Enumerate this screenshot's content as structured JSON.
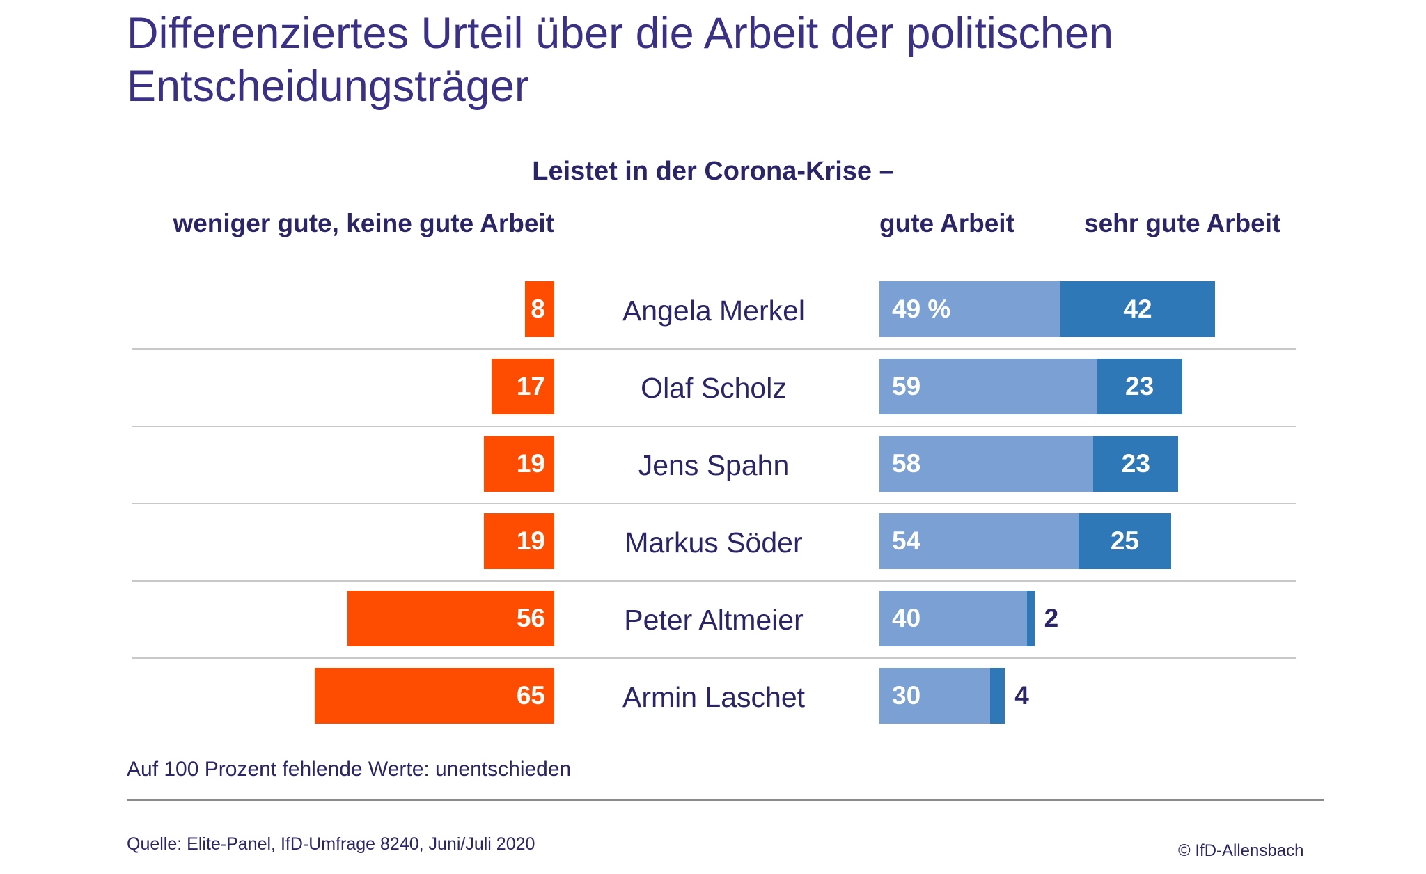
{
  "chart_data": {
    "type": "bar",
    "title": "Differenziertes Urteil über die Arbeit der politischen Entscheidungsträger",
    "title_lines": [
      "Differenziertes Urteil über die Arbeit der politischen",
      "Entscheidungsträger"
    ],
    "subtitle": "Leistet in der Corona-Krise –",
    "categories": [
      "Angela Merkel",
      "Olaf Scholz",
      "Jens Spahn",
      "Markus Söder",
      "Peter Altmeier",
      "Armin Laschet"
    ],
    "series": [
      {
        "name": "weniger gute, keine gute Arbeit",
        "values": [
          8,
          17,
          19,
          19,
          56,
          65
        ],
        "color": "#ff4d00"
      },
      {
        "name": "gute Arbeit",
        "values": [
          49,
          59,
          58,
          54,
          40,
          30
        ],
        "color": "#7aa0d4"
      },
      {
        "name": "sehr gute Arbeit",
        "values": [
          42,
          23,
          23,
          25,
          2,
          4
        ],
        "color": "#2f78b8"
      }
    ],
    "value_labels": {
      "negative": [
        "8",
        "17",
        "19",
        "19",
        "56",
        "65"
      ],
      "good": [
        "49 %",
        "59",
        "58",
        "54",
        "40",
        "30"
      ],
      "very_good": [
        "42",
        "23",
        "23",
        "25",
        "2",
        "4"
      ]
    },
    "orientation": "horizontal-diverging",
    "unit": "%",
    "grid": false
  },
  "note": "Auf 100 Prozent fehlende Werte: unentschieden",
  "source": "Quelle: Elite-Panel, IfD-Umfrage 8240, Juni/Juli 2020",
  "copyright": "© IfD-Allensbach",
  "colors": {
    "title": "#3a3088",
    "text": "#2a2468",
    "negative": "#ff4d00",
    "good": "#7aa0d4",
    "very_good": "#2f78b8"
  }
}
